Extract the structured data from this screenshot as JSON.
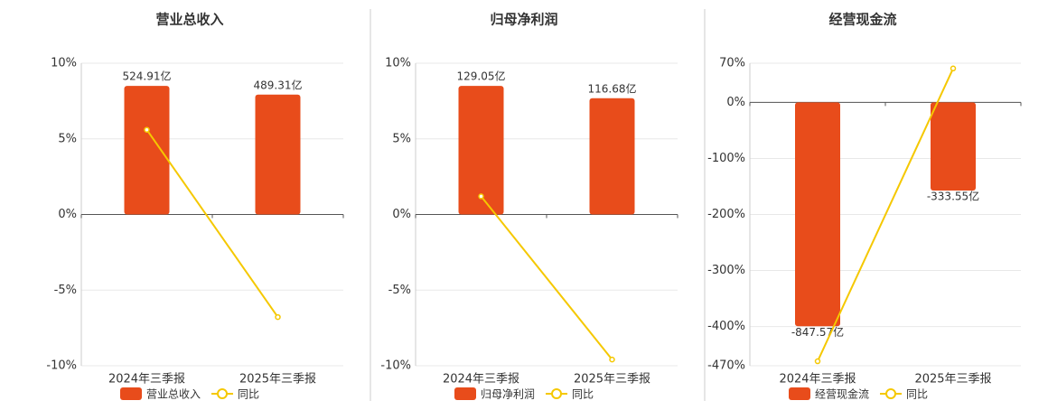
{
  "chart_data": [
    {
      "type": "bar",
      "title": "营业总收入",
      "categories": [
        "2024年三季报",
        "2025年三季报"
      ],
      "series": [
        {
          "name": "营业总收入",
          "type": "bar",
          "color": "#e84c1b",
          "values": [
            524.91,
            489.31
          ],
          "value_labels": [
            "524.91亿",
            "489.31亿"
          ]
        },
        {
          "name": "同比",
          "type": "line",
          "color": "#f5c800",
          "values": [
            5.6,
            -6.78
          ]
        }
      ],
      "ylim": [
        -10,
        10
      ],
      "yticks": [
        {
          "value": -10,
          "label": "-10%"
        },
        {
          "value": -5,
          "label": "-5%"
        },
        {
          "value": 0,
          "label": "0%"
        },
        {
          "value": 5,
          "label": "5%"
        },
        {
          "value": 10,
          "label": "10%"
        }
      ],
      "grid": true
    },
    {
      "type": "bar",
      "title": "归母净利润",
      "categories": [
        "2024年三季报",
        "2025年三季报"
      ],
      "series": [
        {
          "name": "归母净利润",
          "type": "bar",
          "color": "#e84c1b",
          "values": [
            129.05,
            116.68
          ],
          "value_labels": [
            "129.05亿",
            "116.68亿"
          ]
        },
        {
          "name": "同比",
          "type": "line",
          "color": "#f5c800",
          "values": [
            1.2,
            -9.59
          ]
        }
      ],
      "ylim": [
        -10,
        10
      ],
      "yticks": [
        {
          "value": -10,
          "label": "-10%"
        },
        {
          "value": -5,
          "label": "-5%"
        },
        {
          "value": 0,
          "label": "0%"
        },
        {
          "value": 5,
          "label": "5%"
        },
        {
          "value": 10,
          "label": "10%"
        }
      ],
      "grid": true
    },
    {
      "type": "bar",
      "title": "经营现金流",
      "categories": [
        "2024年三季报",
        "2025年三季报"
      ],
      "series": [
        {
          "name": "经营现金流",
          "type": "bar",
          "color": "#e84c1b",
          "values": [
            -847.57,
            -333.55
          ],
          "value_labels": [
            "-847.57亿",
            "-333.55亿"
          ]
        },
        {
          "name": "同比",
          "type": "line",
          "color": "#f5c800",
          "values": [
            -462,
            60.65
          ]
        }
      ],
      "ylim": [
        -470,
        70
      ],
      "yticks": [
        {
          "value": -470,
          "label": "-470%"
        },
        {
          "value": -400,
          "label": "-400%"
        },
        {
          "value": -300,
          "label": "-300%"
        },
        {
          "value": -200,
          "label": "-200%"
        },
        {
          "value": -100,
          "label": "-100%"
        },
        {
          "value": 0,
          "label": "0%"
        },
        {
          "value": 70,
          "label": "70%"
        }
      ],
      "grid": true
    }
  ]
}
